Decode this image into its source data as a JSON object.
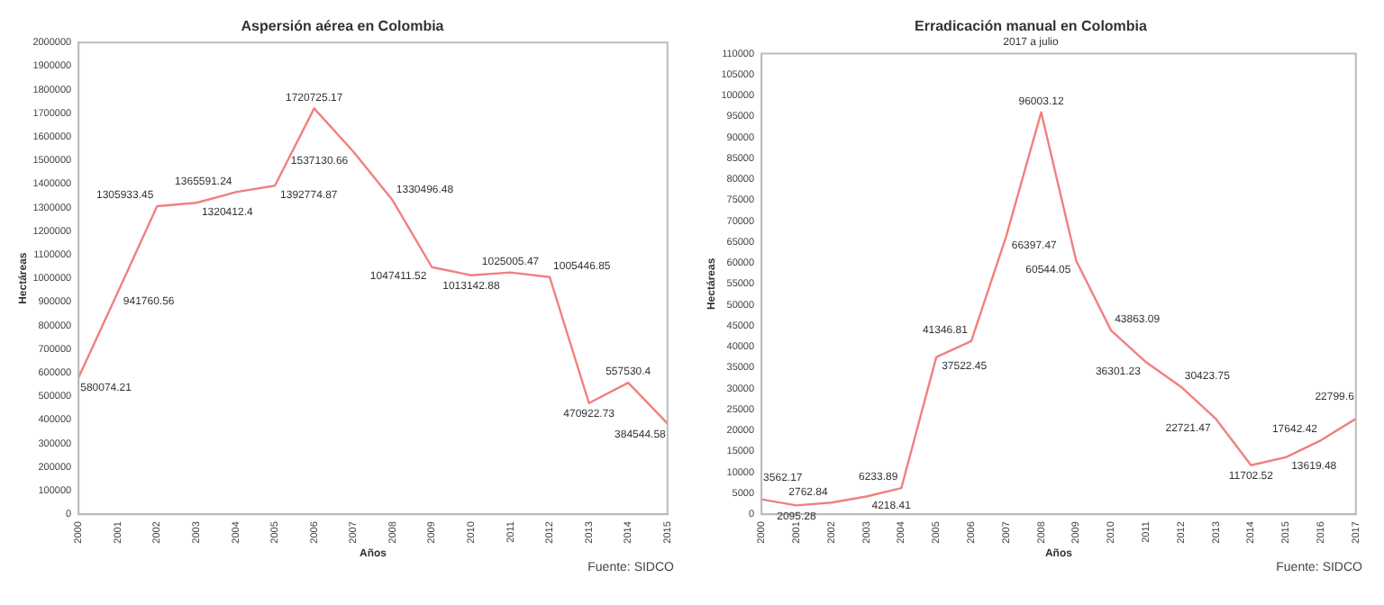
{
  "chart_data": [
    {
      "type": "line",
      "title": "Aspersión aérea en Colombia",
      "xlabel": "Años",
      "ylabel": "Hectáreas",
      "categories": [
        "2000",
        "2001",
        "2002",
        "2003",
        "2004",
        "2005",
        "2006",
        "2007",
        "2008",
        "2009",
        "2010",
        "2011",
        "2012",
        "2013",
        "2014",
        "2015"
      ],
      "series": [
        {
          "color": "#f08080",
          "values": [
            580074.21,
            941760.56,
            1305933.45,
            1320412.4,
            1365591.24,
            1392774.87,
            1720725.17,
            1537130.66,
            1330496.48,
            1047411.52,
            1013142.88,
            1025005.47,
            1005446.85,
            470922.73,
            557530.4,
            384544.58
          ]
        }
      ],
      "ylim": [
        0,
        2000000
      ],
      "yticks": [
        0,
        100000,
        200000,
        300000,
        400000,
        500000,
        600000,
        700000,
        800000,
        900000,
        1000000,
        1100000,
        1200000,
        1300000,
        1400000,
        1500000,
        1600000,
        1700000,
        1800000,
        1900000,
        2000000
      ],
      "data_labels": true,
      "marker": "none",
      "line_style": "solid",
      "grid": false,
      "legend": false,
      "annotations": [
        "Fuente: SIDCO"
      ]
    },
    {
      "type": "line",
      "title": "Erradicación manual en Colombia",
      "subtitle": "2017 a julio",
      "xlabel": "Años",
      "ylabel": "Hectáreas",
      "categories": [
        "2000",
        "2001",
        "2002",
        "2003",
        "2004",
        "2005",
        "2006",
        "2007",
        "2008",
        "2009",
        "2010",
        "2011",
        "2012",
        "2013",
        "2014",
        "2015",
        "2016",
        "2017"
      ],
      "series": [
        {
          "color": "#f08080",
          "values": [
            3562.17,
            2095.28,
            2762.84,
            4218.41,
            6233.89,
            37522.45,
            41346.81,
            66397.47,
            96003.12,
            60544.05,
            43863.09,
            36301.23,
            30423.75,
            22721.47,
            11702.52,
            13619.48,
            17642.42,
            22799.6
          ]
        }
      ],
      "ylim": [
        0,
        110000
      ],
      "yticks": [
        0,
        5000,
        10000,
        15000,
        20000,
        25000,
        30000,
        35000,
        40000,
        45000,
        50000,
        55000,
        60000,
        65000,
        70000,
        75000,
        80000,
        85000,
        90000,
        95000,
        100000,
        105000,
        110000
      ],
      "data_labels": true,
      "marker": "none",
      "line_style": "solid",
      "grid": false,
      "legend": false,
      "annotations": [
        "Fuente: SIDCO"
      ]
    }
  ]
}
